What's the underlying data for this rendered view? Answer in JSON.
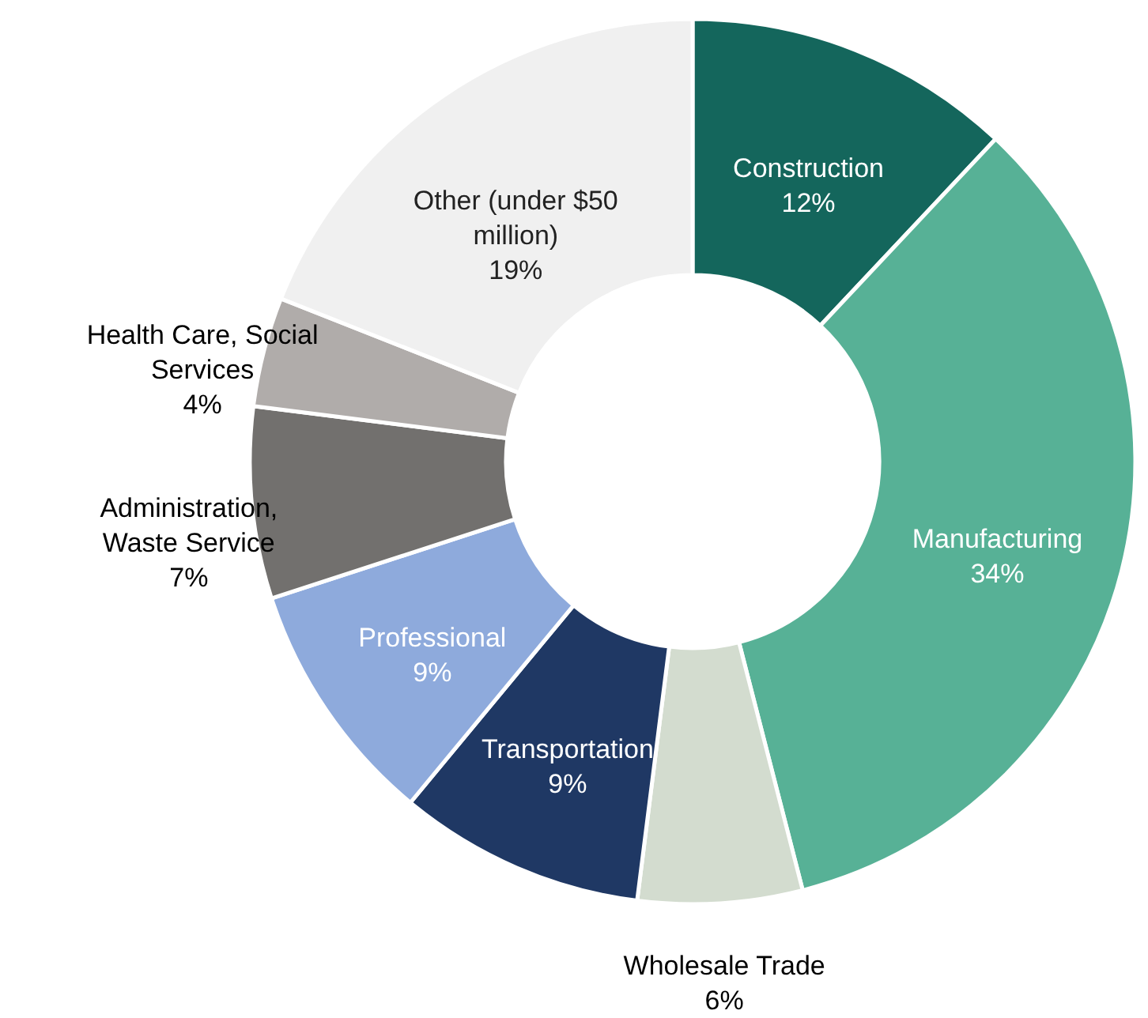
{
  "chart_data": {
    "type": "donut",
    "categories": [
      "Construction",
      "Manufacturing",
      "Wholesale Trade",
      "Transportation",
      "Professional",
      "Administration, Waste Service",
      "Health Care, Social Services",
      "Other (under $50 million)"
    ],
    "values": [
      12,
      34,
      6,
      9,
      9,
      7,
      4,
      19
    ],
    "colors": [
      "#14665c",
      "#57b196",
      "#d3dccf",
      "#1f3864",
      "#8eaadc",
      "#72706e",
      "#b0acaa",
      "#f0f0f0"
    ],
    "value_labels": [
      "12%",
      "34%",
      "6%",
      "9%",
      "9%",
      "7%",
      "4%",
      "19%"
    ]
  }
}
